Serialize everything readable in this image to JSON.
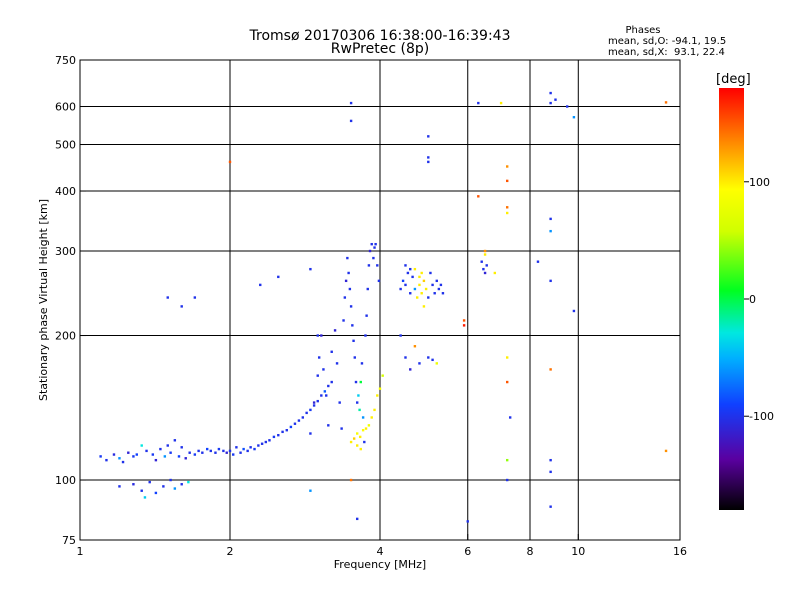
{
  "header": {
    "title_line1": "Tromsø 20170306 16:38:00-16:39:43",
    "title_line2": "RwPretec (8p)",
    "phases_title": "Phases",
    "phases_line1": "mean, sd,O: -94.1, 19.5",
    "phases_line2": "mean, sd,X:  93.1, 22.4"
  },
  "colorbar": {
    "unit_label": "[deg]",
    "ticks": [
      {
        "value": 100,
        "label": "100"
      },
      {
        "value": 0,
        "label": "0"
      },
      {
        "value": -100,
        "label": "-100"
      }
    ],
    "range": [
      -180,
      180
    ]
  },
  "chart_data": {
    "type": "scatter",
    "title": "Tromsø 20170306 16:38:00-16:39:43 RwPretec (8p)",
    "xlabel": "Frequency [MHz]",
    "ylabel": "Stationary phase Virtual Height [km]",
    "x_scale": "log",
    "y_scale": "log",
    "xlim": [
      1,
      16
    ],
    "ylim": [
      75,
      750
    ],
    "grid": true,
    "x_ticks": [
      {
        "value": 1,
        "label": "1"
      },
      {
        "value": 2,
        "label": "2"
      },
      {
        "value": 4,
        "label": "4"
      },
      {
        "value": 6,
        "label": "6"
      },
      {
        "value": 8,
        "label": "8"
      },
      {
        "value": 10,
        "label": "10"
      },
      {
        "value": 16,
        "label": "16"
      }
    ],
    "x_grid": [
      2,
      4,
      6,
      8,
      10
    ],
    "y_ticks": [
      {
        "value": 75,
        "label": "75"
      },
      {
        "value": 100,
        "label": "100"
      },
      {
        "value": 200,
        "label": "200"
      },
      {
        "value": 300,
        "label": "300"
      },
      {
        "value": 400,
        "label": "400"
      },
      {
        "value": 500,
        "label": "500"
      },
      {
        "value": 600,
        "label": "600"
      },
      {
        "value": 750,
        "label": "750"
      }
    ],
    "y_grid": [
      100,
      200,
      300,
      400,
      500,
      600
    ],
    "points": [
      [
        1.1,
        112,
        -95
      ],
      [
        1.13,
        110,
        -100
      ],
      [
        1.17,
        113,
        -105
      ],
      [
        1.2,
        111,
        -60
      ],
      [
        1.22,
        109,
        -100
      ],
      [
        1.25,
        114,
        -110
      ],
      [
        1.28,
        112,
        -95
      ],
      [
        1.3,
        113,
        -90
      ],
      [
        1.33,
        118,
        -30
      ],
      [
        1.36,
        115,
        -100
      ],
      [
        1.4,
        113,
        -95
      ],
      [
        1.42,
        110,
        -110
      ],
      [
        1.45,
        116,
        -100
      ],
      [
        1.48,
        112,
        -60
      ],
      [
        1.5,
        118,
        -100
      ],
      [
        1.52,
        114,
        -95
      ],
      [
        1.55,
        121,
        -100
      ],
      [
        1.58,
        112,
        -90
      ],
      [
        1.6,
        117,
        -100
      ],
      [
        1.63,
        111,
        -110
      ],
      [
        1.66,
        114,
        -100
      ],
      [
        1.7,
        113,
        -95
      ],
      [
        1.73,
        115,
        -100
      ],
      [
        1.76,
        114,
        -100
      ],
      [
        1.8,
        116,
        -90
      ],
      [
        1.83,
        115,
        -100
      ],
      [
        1.87,
        114,
        -100
      ],
      [
        1.9,
        116,
        -95
      ],
      [
        1.94,
        115,
        -100
      ],
      [
        1.97,
        114,
        -110
      ],
      [
        2.0,
        115,
        -100
      ],
      [
        2.03,
        113,
        -95
      ],
      [
        2.06,
        117,
        -100
      ],
      [
        2.1,
        114,
        -100
      ],
      [
        2.13,
        116,
        -85
      ],
      [
        2.17,
        115,
        -100
      ],
      [
        2.2,
        117,
        -100
      ],
      [
        2.24,
        116,
        -95
      ],
      [
        2.28,
        118,
        -100
      ],
      [
        2.32,
        119,
        -100
      ],
      [
        2.36,
        120,
        -100
      ],
      [
        2.4,
        121,
        -100
      ],
      [
        2.45,
        123,
        -95
      ],
      [
        2.5,
        124,
        -100
      ],
      [
        2.55,
        126,
        -100
      ],
      [
        2.6,
        127,
        -100
      ],
      [
        2.65,
        129,
        -90
      ],
      [
        2.7,
        131,
        -100
      ],
      [
        2.75,
        133,
        -100
      ],
      [
        2.8,
        135,
        -100
      ],
      [
        2.85,
        138,
        -100
      ],
      [
        2.9,
        140,
        -95
      ],
      [
        2.95,
        143,
        -100
      ],
      [
        3.0,
        146,
        -100
      ],
      [
        3.05,
        150,
        -100
      ],
      [
        3.1,
        153,
        -80
      ],
      [
        3.15,
        157,
        -100
      ],
      [
        3.2,
        160,
        -100
      ],
      [
        1.2,
        97,
        -100
      ],
      [
        1.28,
        98,
        -105
      ],
      [
        1.33,
        95,
        -100
      ],
      [
        1.38,
        99,
        -100
      ],
      [
        1.42,
        94,
        -90
      ],
      [
        1.47,
        97,
        -100
      ],
      [
        1.52,
        100,
        -100
      ],
      [
        1.55,
        96,
        -60
      ],
      [
        1.6,
        98,
        -100
      ],
      [
        1.65,
        99,
        -30
      ],
      [
        1.35,
        92,
        -40
      ],
      [
        2.9,
        125,
        -100
      ],
      [
        2.95,
        145,
        -110
      ],
      [
        3.0,
        165,
        -100
      ],
      [
        3.02,
        180,
        -100
      ],
      [
        3.05,
        200,
        -110
      ],
      [
        3.08,
        170,
        -100
      ],
      [
        3.12,
        150,
        -100
      ],
      [
        3.15,
        130,
        -100
      ],
      [
        3.2,
        185,
        -100
      ],
      [
        3.25,
        205,
        -110
      ],
      [
        3.28,
        175,
        -100
      ],
      [
        3.32,
        145,
        -100
      ],
      [
        3.35,
        128,
        -100
      ],
      [
        3.38,
        215,
        -100
      ],
      [
        3.4,
        240,
        -100
      ],
      [
        3.42,
        260,
        -110
      ],
      [
        3.44,
        290,
        -100
      ],
      [
        3.46,
        270,
        -100
      ],
      [
        3.48,
        250,
        -100
      ],
      [
        3.5,
        230,
        -100
      ],
      [
        3.52,
        210,
        -100
      ],
      [
        3.54,
        195,
        -100
      ],
      [
        3.56,
        180,
        -100
      ],
      [
        3.58,
        160,
        -100
      ],
      [
        3.6,
        145,
        -100
      ],
      [
        3.62,
        150,
        -40
      ],
      [
        3.64,
        140,
        -20
      ],
      [
        3.66,
        160,
        0
      ],
      [
        3.68,
        175,
        -100
      ],
      [
        3.7,
        135,
        -60
      ],
      [
        3.72,
        120,
        -100
      ],
      [
        3.74,
        200,
        -100
      ],
      [
        3.76,
        220,
        -100
      ],
      [
        3.78,
        250,
        -100
      ],
      [
        3.8,
        280,
        -100
      ],
      [
        3.82,
        300,
        -110
      ],
      [
        3.85,
        310,
        -100
      ],
      [
        3.88,
        290,
        -100
      ],
      [
        3.9,
        305,
        -100
      ],
      [
        3.92,
        310,
        -100
      ],
      [
        3.95,
        280,
        -100
      ],
      [
        3.98,
        260,
        -100
      ],
      [
        3.5,
        120,
        100
      ],
      [
        3.55,
        122,
        110
      ],
      [
        3.6,
        125,
        90
      ],
      [
        3.65,
        123,
        100
      ],
      [
        3.7,
        127,
        95
      ],
      [
        3.75,
        128,
        100
      ],
      [
        3.8,
        130,
        80
      ],
      [
        3.85,
        135,
        100
      ],
      [
        3.9,
        140,
        100
      ],
      [
        3.95,
        150,
        100
      ],
      [
        4.0,
        155,
        90
      ],
      [
        4.05,
        165,
        60
      ],
      [
        3.6,
        118,
        100
      ],
      [
        3.66,
        116,
        100
      ],
      [
        4.4,
        250,
        -100
      ],
      [
        4.45,
        260,
        -90
      ],
      [
        4.5,
        255,
        -100
      ],
      [
        4.55,
        270,
        -100
      ],
      [
        4.6,
        245,
        -100
      ],
      [
        4.65,
        265,
        -100
      ],
      [
        4.7,
        250,
        -60
      ],
      [
        4.75,
        240,
        100
      ],
      [
        4.8,
        255,
        100
      ],
      [
        4.85,
        245,
        100
      ],
      [
        4.9,
        260,
        110
      ],
      [
        4.95,
        250,
        100
      ],
      [
        5.0,
        240,
        -100
      ],
      [
        5.05,
        270,
        -100
      ],
      [
        5.1,
        255,
        -100
      ],
      [
        5.15,
        245,
        -100
      ],
      [
        5.2,
        260,
        -100
      ],
      [
        5.25,
        250,
        -100
      ],
      [
        5.3,
        255,
        -100
      ],
      [
        5.35,
        245,
        -100
      ],
      [
        4.5,
        280,
        -100
      ],
      [
        4.6,
        275,
        -100
      ],
      [
        4.7,
        275,
        100
      ],
      [
        4.8,
        265,
        100
      ],
      [
        4.85,
        270,
        100
      ],
      [
        4.9,
        230,
        100
      ],
      [
        4.4,
        200,
        -100
      ],
      [
        4.5,
        180,
        -100
      ],
      [
        4.6,
        170,
        -110
      ],
      [
        4.7,
        190,
        130
      ],
      [
        4.8,
        175,
        -100
      ],
      [
        5.0,
        180,
        -100
      ],
      [
        5.1,
        178,
        -100
      ],
      [
        5.2,
        175,
        80
      ],
      [
        6.4,
        285,
        -100
      ],
      [
        6.45,
        275,
        -100
      ],
      [
        6.5,
        270,
        -110
      ],
      [
        6.55,
        280,
        -100
      ],
      [
        3.5,
        610,
        -100
      ],
      [
        3.5,
        560,
        -100
      ],
      [
        5.0,
        520,
        -100
      ],
      [
        5.0,
        470,
        -100
      ],
      [
        5.0,
        460,
        -100
      ],
      [
        6.3,
        610,
        -100
      ],
      [
        7.0,
        610,
        100
      ],
      [
        7.2,
        450,
        130
      ],
      [
        7.2,
        420,
        150
      ],
      [
        7.2,
        370,
        140
      ],
      [
        7.2,
        360,
        100
      ],
      [
        8.8,
        640,
        -100
      ],
      [
        8.8,
        610,
        -100
      ],
      [
        9.0,
        620,
        -100
      ],
      [
        9.5,
        600,
        -100
      ],
      [
        9.8,
        570,
        -60
      ],
      [
        8.8,
        350,
        -100
      ],
      [
        8.8,
        330,
        -60
      ],
      [
        8.3,
        285,
        -100
      ],
      [
        8.8,
        260,
        -100
      ],
      [
        9.8,
        225,
        -100
      ],
      [
        8.8,
        170,
        140
      ],
      [
        7.2,
        180,
        100
      ],
      [
        7.2,
        160,
        150
      ],
      [
        7.3,
        135,
        -100
      ],
      [
        8.8,
        110,
        -100
      ],
      [
        8.8,
        104,
        -100
      ],
      [
        7.2,
        100,
        -100
      ],
      [
        8.8,
        88,
        -100
      ],
      [
        6.0,
        82,
        -100
      ],
      [
        3.6,
        83,
        -100
      ],
      [
        2.9,
        95,
        -60
      ],
      [
        3.5,
        100,
        140
      ],
      [
        6.3,
        390,
        150
      ],
      [
        6.5,
        300,
        130
      ],
      [
        6.5,
        295,
        100
      ],
      [
        6.8,
        270,
        100
      ],
      [
        5.9,
        215,
        150
      ],
      [
        5.9,
        210,
        170
      ],
      [
        7.2,
        110,
        40
      ],
      [
        15.0,
        612,
        140
      ],
      [
        15.0,
        115,
        130
      ],
      [
        1.7,
        240,
        -100
      ],
      [
        1.5,
        240,
        -100
      ],
      [
        1.6,
        230,
        -100
      ],
      [
        2.0,
        460,
        150
      ],
      [
        2.3,
        255,
        -100
      ],
      [
        2.5,
        265,
        -100
      ],
      [
        2.9,
        275,
        -100
      ],
      [
        3.0,
        200,
        -100
      ]
    ]
  }
}
